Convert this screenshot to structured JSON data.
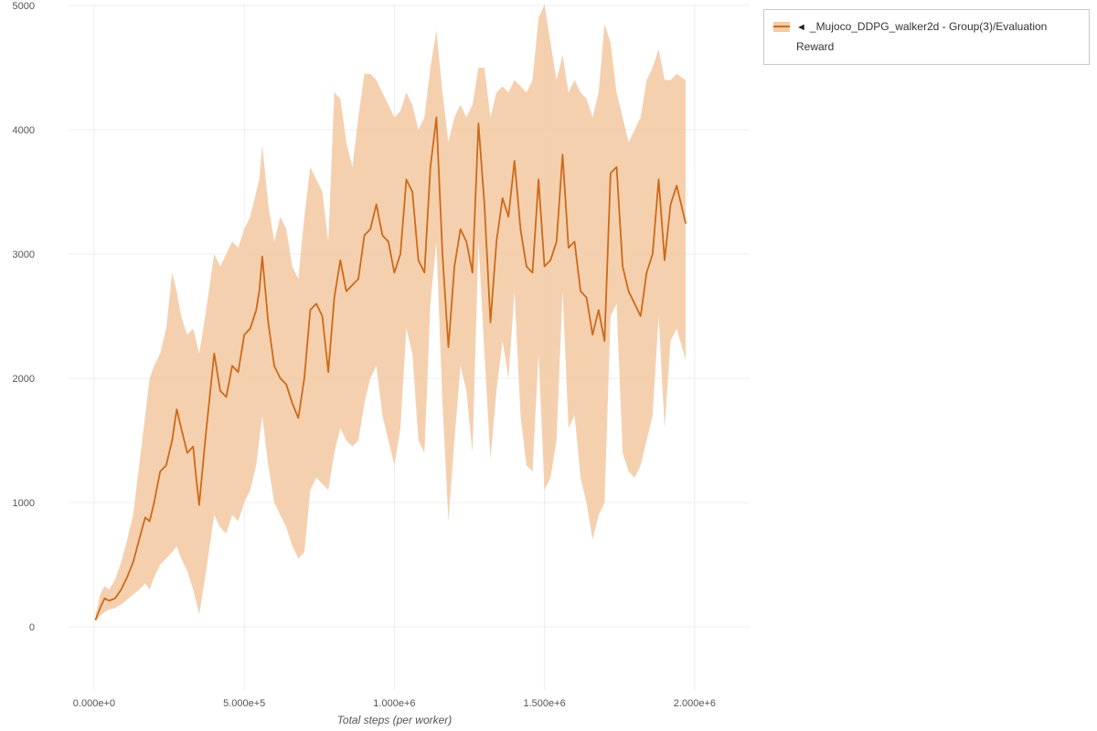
{
  "page": {
    "background": "#ffffff"
  },
  "legend": {
    "collapse_icon": "◄",
    "label": "_Mujoco_DDPG_walker2d - Group(3)/Evaluation Reward",
    "swatch_fill": "#f4cba6",
    "swatch_line": "#cd6a17"
  },
  "chart_data": {
    "type": "line",
    "title": "",
    "xlabel": "Total steps (per worker)",
    "ylabel": "",
    "xlim": [
      -85000,
      2183000
    ],
    "ylim": [
      -500,
      5000
    ],
    "grid": true,
    "legend_position": "top-right",
    "x_tick_values": [
      0,
      500000,
      1000000,
      1500000,
      2000000
    ],
    "x_tick_labels": [
      "0.000e+0",
      "5.000e+5",
      "1.000e+6",
      "1.500e+6",
      "2.000e+6"
    ],
    "y_tick_values": [
      0,
      1000,
      2000,
      3000,
      4000,
      5000
    ],
    "series": [
      {
        "name": "_Mujoco_DDPG_walker2d - Group(3)/Evaluation Reward",
        "color": "#cd6a17",
        "band_color": "#f4cba6",
        "x": [
          5000,
          20000,
          35000,
          50000,
          70000,
          90000,
          110000,
          130000,
          150000,
          170000,
          185000,
          200000,
          220000,
          240000,
          260000,
          275000,
          290000,
          310000,
          330000,
          340000,
          350000,
          370000,
          400000,
          420000,
          440000,
          460000,
          480000,
          500000,
          520000,
          540000,
          550000,
          560000,
          580000,
          600000,
          620000,
          640000,
          660000,
          680000,
          700000,
          720000,
          740000,
          760000,
          780000,
          800000,
          820000,
          840000,
          860000,
          880000,
          900000,
          920000,
          940000,
          960000,
          980000,
          1000000,
          1020000,
          1040000,
          1060000,
          1080000,
          1100000,
          1120000,
          1140000,
          1160000,
          1180000,
          1200000,
          1220000,
          1240000,
          1260000,
          1280000,
          1300000,
          1320000,
          1340000,
          1360000,
          1380000,
          1400000,
          1420000,
          1440000,
          1460000,
          1480000,
          1500000,
          1520000,
          1540000,
          1560000,
          1580000,
          1600000,
          1620000,
          1640000,
          1660000,
          1680000,
          1700000,
          1720000,
          1740000,
          1760000,
          1780000,
          1800000,
          1820000,
          1840000,
          1860000,
          1880000,
          1900000,
          1920000,
          1940000,
          1970000
        ],
        "mean": [
          60,
          150,
          230,
          210,
          230,
          300,
          400,
          520,
          700,
          880,
          850,
          1000,
          1250,
          1300,
          1500,
          1750,
          1600,
          1400,
          1450,
          1200,
          980,
          1500,
          2200,
          1900,
          1850,
          2100,
          2050,
          2350,
          2400,
          2550,
          2700,
          2980,
          2450,
          2100,
          2000,
          1950,
          1800,
          1680,
          2000,
          2550,
          2600,
          2500,
          2050,
          2650,
          2950,
          2700,
          2750,
          2800,
          3150,
          3200,
          3400,
          3150,
          3100,
          2850,
          3000,
          3600,
          3500,
          2950,
          2850,
          3700,
          4100,
          3000,
          2250,
          2900,
          3200,
          3100,
          2850,
          4050,
          3400,
          2450,
          3100,
          3450,
          3300,
          3750,
          3200,
          2900,
          2850,
          3600,
          2900,
          2950,
          3100,
          3800,
          3050,
          3100,
          2700,
          2650,
          2350,
          2550,
          2300,
          3650,
          3700,
          2900,
          2700,
          2600,
          2500,
          2850,
          3000,
          3600,
          2950,
          3400,
          3550,
          3250
        ],
        "lower": [
          40,
          90,
          120,
          140,
          150,
          180,
          220,
          260,
          300,
          350,
          300,
          400,
          500,
          550,
          600,
          650,
          550,
          450,
          300,
          200,
          100,
          400,
          900,
          800,
          750,
          900,
          850,
          1000,
          1100,
          1300,
          1500,
          1700,
          1300,
          1000,
          900,
          800,
          650,
          550,
          600,
          1100,
          1200,
          1150,
          1100,
          1400,
          1600,
          1500,
          1450,
          1500,
          1800,
          2000,
          2100,
          1700,
          1500,
          1300,
          1600,
          2400,
          2200,
          1500,
          1400,
          2600,
          3100,
          1800,
          850,
          1500,
          2100,
          1900,
          1400,
          3100,
          2200,
          1350,
          1900,
          2300,
          2000,
          2700,
          1700,
          1300,
          1250,
          2200,
          1100,
          1200,
          1500,
          2700,
          1600,
          1700,
          1200,
          1000,
          700,
          900,
          1000,
          2500,
          2600,
          1400,
          1250,
          1200,
          1300,
          1500,
          1700,
          2500,
          1600,
          2300,
          2400,
          2150
        ],
        "upper": [
          90,
          260,
          330,
          300,
          380,
          520,
          700,
          900,
          1300,
          1700,
          2000,
          2100,
          2200,
          2400,
          2850,
          2700,
          2500,
          2350,
          2400,
          2300,
          2200,
          2500,
          3000,
          2900,
          3000,
          3100,
          3050,
          3200,
          3300,
          3500,
          3600,
          3880,
          3400,
          3100,
          3300,
          3200,
          2900,
          2800,
          3300,
          3700,
          3600,
          3500,
          3100,
          4300,
          4250,
          3900,
          3700,
          4100,
          4450,
          4450,
          4400,
          4300,
          4200,
          4100,
          4150,
          4300,
          4200,
          4000,
          4100,
          4500,
          4800,
          4300,
          3900,
          4100,
          4200,
          4100,
          4200,
          4500,
          4500,
          4100,
          4300,
          4350,
          4300,
          4400,
          4350,
          4300,
          4400,
          4900,
          5050,
          4700,
          4400,
          4600,
          4300,
          4400,
          4300,
          4250,
          4100,
          4300,
          4850,
          4700,
          4300,
          4100,
          3900,
          4000,
          4100,
          4400,
          4500,
          4650,
          4400,
          4400,
          4450,
          4400
        ]
      }
    ]
  }
}
